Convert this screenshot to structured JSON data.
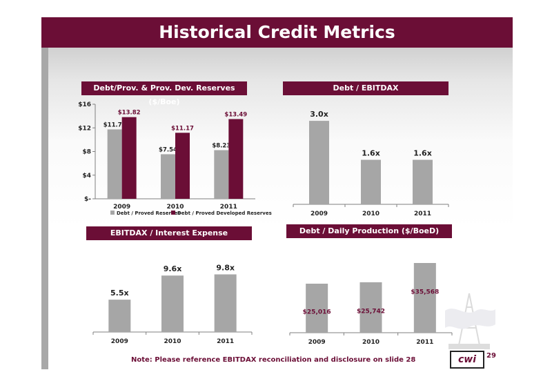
{
  "slide": {
    "title": "Historical Credit Metrics",
    "note": "Note:  Please reference EBITDAX reconciliation and disclosure on slide 28",
    "page_number": "29",
    "logo_text": "cwi"
  },
  "colors": {
    "maroon": "#6b0e36",
    "gray_bar": "#a6a6a6",
    "text_dark": "#222222"
  },
  "chart_data": [
    {
      "id": "reserves",
      "type": "bar",
      "title": "Debt/Prov. & Prov. Dev. Reserves ($/Boe)",
      "categories": [
        "2009",
        "2010",
        "2011"
      ],
      "series": [
        {
          "name": "Debt / Proved Reserves",
          "values": [
            11.74,
            7.54,
            8.23
          ],
          "labels": [
            "$11.74",
            "$7.54",
            "$8.23"
          ],
          "color": "#a6a6a6"
        },
        {
          "name": "Debt / Proved Developed Reserves",
          "values": [
            13.82,
            11.17,
            13.49
          ],
          "labels": [
            "$13.82",
            "$11.17",
            "$13.49"
          ],
          "color": "#6b0e36"
        }
      ],
      "y_ticks": [
        0,
        4,
        8,
        12,
        16
      ],
      "y_tick_labels": [
        "$-",
        "$4",
        "$8",
        "$12",
        "$16"
      ],
      "ylim": [
        0,
        16
      ],
      "legend": "bottom"
    },
    {
      "id": "ebitdax",
      "type": "bar",
      "title": "Debt / EBITDAX",
      "categories": [
        "2009",
        "2010",
        "2011"
      ],
      "values": [
        3.0,
        1.6,
        1.6
      ],
      "labels": [
        "3.0x",
        "1.6x",
        "1.6x"
      ],
      "ylim": [
        0,
        3.3
      ]
    },
    {
      "id": "interest",
      "type": "bar",
      "title": "EBITDAX / Interest Expense",
      "categories": [
        "2009",
        "2010",
        "2011"
      ],
      "values": [
        5.5,
        9.6,
        9.8
      ],
      "labels": [
        "5.5x",
        "9.6x",
        "9.8x"
      ],
      "ylim": [
        0,
        11.5
      ]
    },
    {
      "id": "production",
      "type": "bar",
      "title": "Debt / Daily Production ($/BoeD)",
      "categories": [
        "2009",
        "2010",
        "2011"
      ],
      "values": [
        25016,
        25742,
        35568
      ],
      "labels": [
        "$25,016",
        "$25,742",
        "$35,568"
      ],
      "ylim": [
        0,
        35568
      ],
      "labels_inside": true
    }
  ]
}
